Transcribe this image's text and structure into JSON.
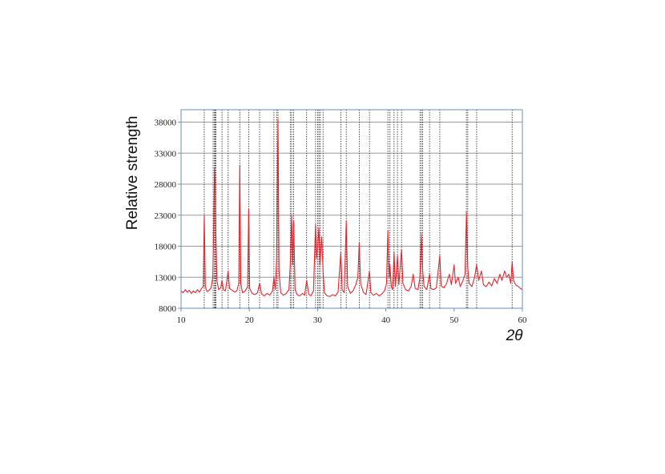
{
  "chart_data": {
    "type": "line",
    "y_label": "Relative strength",
    "x_label": "2θ",
    "color": "#e2262f",
    "grid": true,
    "xlim": [
      10,
      60
    ],
    "xticks": [
      10,
      20,
      30,
      40,
      50,
      60
    ],
    "ylim": [
      8000,
      40000
    ],
    "yticks": [
      8000,
      13000,
      18000,
      23000,
      28000,
      33000,
      38000
    ],
    "reference_lines": [
      13.4,
      14.7,
      14.9,
      15.0,
      15.1,
      16.0,
      16.9,
      18.6,
      19.9,
      21.5,
      23.6,
      24.0,
      24.2,
      26.0,
      26.2,
      26.5,
      28.4,
      29.7,
      30.0,
      30.2,
      30.4,
      30.8,
      33.4,
      34.2,
      36.1,
      37.6,
      40.3,
      40.6,
      41.2,
      41.7,
      42.3,
      45.0,
      45.2,
      45.4,
      46.4,
      47.9,
      51.8,
      52.0,
      53.3,
      58.5
    ],
    "x": [
      10.0,
      10.3,
      10.6,
      10.9,
      11.2,
      11.5,
      11.8,
      12.1,
      12.4,
      12.7,
      13.0,
      13.25,
      13.4,
      13.55,
      13.8,
      14.1,
      14.4,
      14.65,
      14.8,
      14.9,
      15.0,
      15.1,
      15.25,
      15.5,
      15.8,
      16.0,
      16.2,
      16.5,
      16.9,
      17.1,
      17.5,
      17.9,
      18.2,
      18.45,
      18.6,
      18.75,
      19.0,
      19.4,
      19.75,
      19.9,
      20.05,
      20.4,
      20.8,
      21.2,
      21.5,
      21.8,
      22.2,
      22.6,
      23.0,
      23.4,
      23.6,
      23.8,
      24.0,
      24.2,
      24.35,
      24.6,
      25.0,
      25.4,
      25.8,
      26.0,
      26.2,
      26.35,
      26.5,
      26.7,
      27.0,
      27.4,
      27.8,
      28.1,
      28.4,
      28.7,
      29.0,
      29.4,
      29.7,
      29.85,
      30.0,
      30.2,
      30.35,
      30.6,
      30.8,
      31.0,
      31.4,
      31.8,
      32.2,
      32.6,
      33.0,
      33.4,
      33.6,
      33.9,
      34.2,
      34.4,
      34.8,
      35.2,
      35.6,
      35.9,
      36.1,
      36.3,
      36.7,
      37.1,
      37.6,
      37.8,
      38.2,
      38.6,
      39.0,
      39.4,
      39.8,
      40.1,
      40.3,
      40.5,
      40.6,
      40.8,
      41.0,
      41.2,
      41.4,
      41.7,
      41.9,
      42.3,
      42.5,
      42.9,
      43.3,
      43.7,
      44.0,
      44.3,
      44.7,
      45.0,
      45.2,
      45.4,
      45.6,
      46.0,
      46.4,
      46.6,
      47.0,
      47.4,
      47.9,
      48.1,
      48.5,
      48.9,
      49.3,
      49.6,
      50.0,
      50.2,
      50.6,
      50.9,
      51.3,
      51.6,
      51.8,
      52.0,
      52.2,
      52.6,
      53.0,
      53.3,
      53.6,
      54.0,
      54.3,
      54.7,
      55.1,
      55.5,
      55.9,
      56.3,
      56.7,
      57.0,
      57.4,
      57.7,
      58.0,
      58.3,
      58.5,
      58.7,
      59.0,
      59.4,
      59.7,
      60.0
    ],
    "values": [
      10800,
      10500,
      11000,
      10600,
      10900,
      10400,
      10800,
      10500,
      11000,
      10600,
      11200,
      11500,
      23000,
      11500,
      10700,
      10900,
      11300,
      13000,
      22000,
      30500,
      28000,
      20000,
      12500,
      11000,
      11300,
      12500,
      11000,
      10800,
      14000,
      11200,
      10900,
      10600,
      10900,
      12000,
      31000,
      12000,
      10500,
      10800,
      11500,
      24000,
      11200,
      10400,
      10200,
      10500,
      12000,
      10300,
      10000,
      10400,
      10100,
      10800,
      13000,
      11000,
      16000,
      38500,
      14000,
      10500,
      10100,
      10400,
      11000,
      15000,
      23000,
      15000,
      22000,
      11000,
      10200,
      10000,
      10400,
      10100,
      12500,
      10300,
      10000,
      10800,
      21500,
      16000,
      18000,
      21000,
      15000,
      19500,
      14000,
      10500,
      10000,
      9900,
      10200,
      10000,
      10600,
      17000,
      11000,
      10500,
      22000,
      11500,
      10400,
      10800,
      11800,
      13000,
      18500,
      12000,
      10600,
      10200,
      14000,
      10500,
      10100,
      10400,
      10000,
      10300,
      10800,
      12000,
      20500,
      13000,
      15000,
      11500,
      11000,
      17000,
      11500,
      16500,
      11800,
      17500,
      12000,
      11000,
      10800,
      11500,
      13500,
      11200,
      11000,
      13000,
      20000,
      14000,
      11500,
      11000,
      13500,
      11200,
      11000,
      11300,
      16500,
      11600,
      11300,
      12000,
      13500,
      11800,
      15000,
      12000,
      13000,
      11500,
      12500,
      13500,
      23500,
      14500,
      12000,
      11500,
      13000,
      15000,
      12500,
      14000,
      11800,
      11500,
      12200,
      11600,
      12800,
      12000,
      13500,
      12500,
      14000,
      13000,
      13500,
      12000,
      15500,
      12500,
      11800,
      11500,
      11200,
      11000
    ]
  }
}
